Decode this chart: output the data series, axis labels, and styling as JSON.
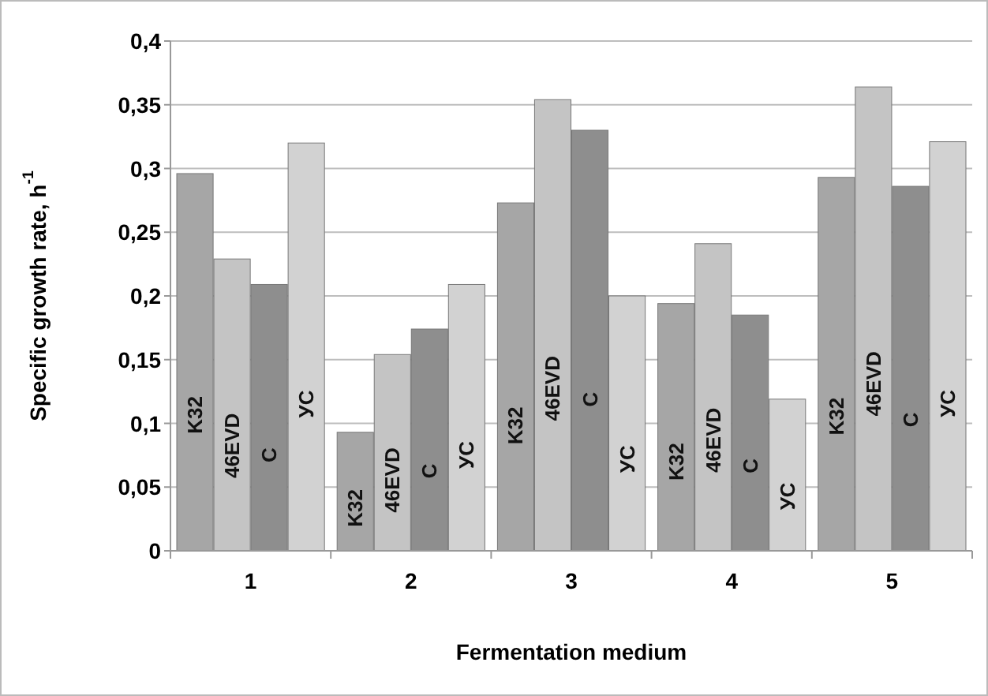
{
  "chart_data": {
    "type": "bar",
    "xlabel": "Fermentation medium",
    "ylabel": "Specific growth rate, h$^{-1}$",
    "categories": [
      "1",
      "2",
      "3",
      "4",
      "5"
    ],
    "series": [
      {
        "name": "K32",
        "color": "#a6a6a6",
        "values": [
          0.296,
          0.093,
          0.273,
          0.194,
          0.293
        ]
      },
      {
        "name": "46EVD",
        "color": "#c4c4c4",
        "values": [
          0.229,
          0.154,
          0.354,
          0.241,
          0.364
        ]
      },
      {
        "name": "C",
        "color": "#8e8e8e",
        "values": [
          0.209,
          0.174,
          0.33,
          0.185,
          0.286
        ]
      },
      {
        "name": "УС",
        "color": "#d2d2d2",
        "values": [
          0.32,
          0.209,
          0.2,
          0.119,
          0.321
        ]
      }
    ],
    "ylim": [
      0,
      0.4
    ],
    "yticks": [
      0,
      {
        "value": 0.05,
        "label": "0,05"
      },
      {
        "value": 0.1,
        "label": "0,1"
      },
      {
        "value": 0.15,
        "label": "0,15"
      },
      {
        "value": 0.2,
        "label": "0,2"
      },
      {
        "value": 0.25,
        "label": "0,25"
      },
      {
        "value": 0.3,
        "label": "0,3"
      },
      {
        "value": 0.35,
        "label": "0,35"
      },
      {
        "value": 0.4,
        "label": "0,4"
      }
    ],
    "grid": "y"
  }
}
